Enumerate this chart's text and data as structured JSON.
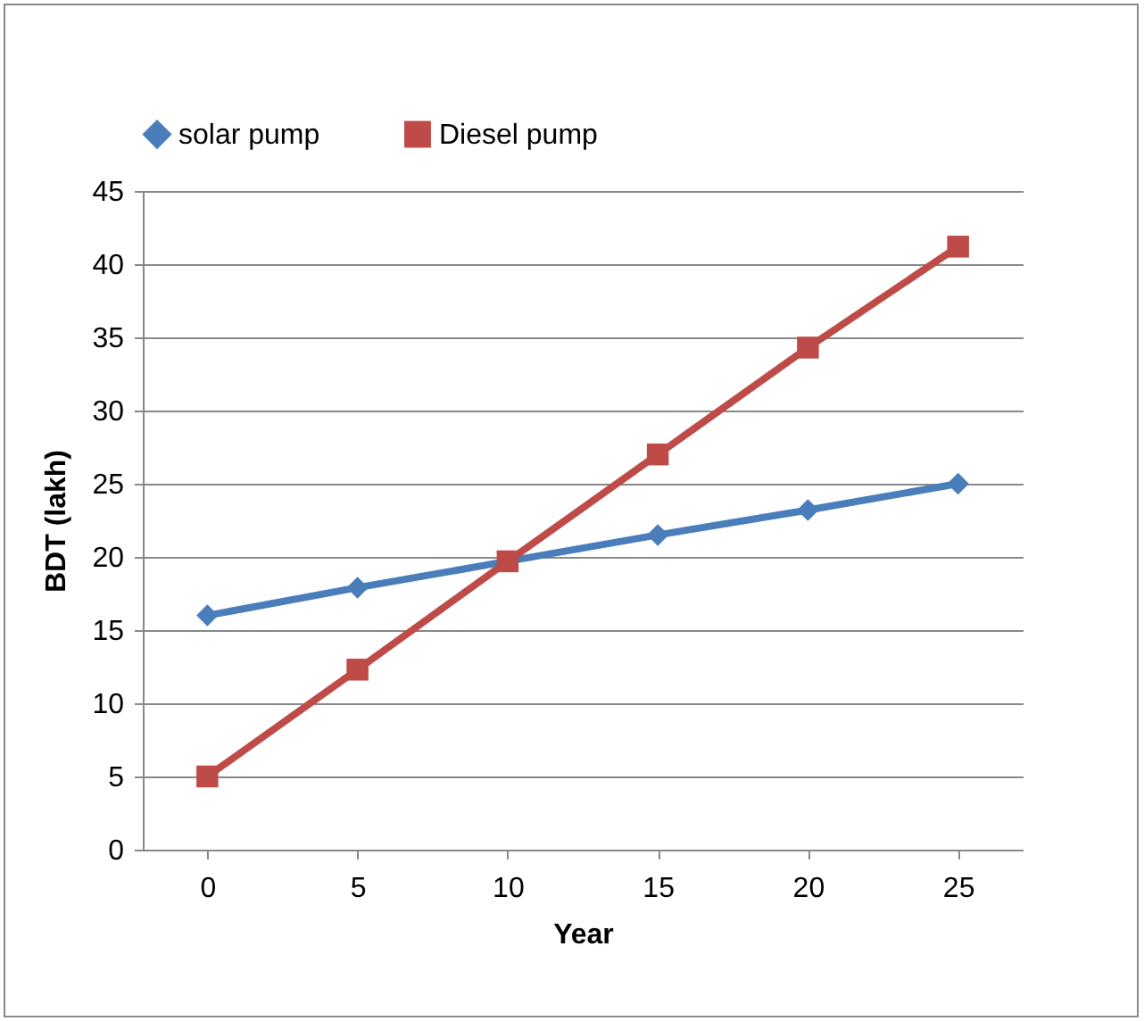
{
  "chart_data": {
    "type": "line",
    "xlabel": "Year",
    "ylabel": "BDT (lakh)",
    "categories": [
      "0",
      "5",
      "10",
      "15",
      "20",
      "25"
    ],
    "ylim": [
      0,
      45
    ],
    "yticks": [
      0,
      5,
      10,
      15,
      20,
      25,
      30,
      35,
      40,
      45
    ],
    "grid": "y",
    "legend": "top",
    "series": [
      {
        "name": "solar pump",
        "color": "#4a7ebb",
        "marker": "diamond",
        "values": [
          16,
          17.9,
          19.7,
          21.5,
          23.2,
          25
        ]
      },
      {
        "name": "Diesel pump",
        "color": "#be4b48",
        "marker": "square",
        "values": [
          5,
          12.3,
          19.7,
          27,
          34.3,
          41.2
        ]
      }
    ]
  }
}
